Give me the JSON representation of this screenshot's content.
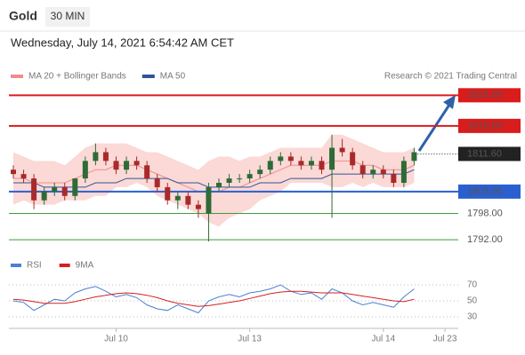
{
  "chart_data": {
    "type": "candlestick",
    "title": "Gold",
    "timeframe": "30 MIN",
    "subtitle": "Wednesday, July 14, 2021 6:54:42 AM CET",
    "source": "Research © 2021 Trading Central",
    "legend": [
      {
        "name": "MA 20 + Bollinger Bands",
        "color": "#f08c8c"
      },
      {
        "name": "MA 50",
        "color": "#2f5597"
      }
    ],
    "up_color": "#2e6b36",
    "down_color": "#a82a2a",
    "band_color": "#fbd9d6",
    "ylim": [
      1790,
      1827.5
    ],
    "open": [
      1808,
      1807,
      1806,
      1801,
      1803,
      1804,
      1802,
      1806,
      1810,
      1812,
      1810,
      1808,
      1810,
      1809,
      1806,
      1804,
      1801,
      1802,
      1800,
      1798,
      1804,
      1805,
      1806,
      1806,
      1807,
      1808,
      1810,
      1811,
      1810,
      1809,
      1810,
      1808,
      1813,
      1812,
      1809,
      1807,
      1808,
      1807,
      1805,
      1810
    ],
    "high": [
      1809,
      1808,
      1807,
      1804,
      1805,
      1805,
      1806,
      1811,
      1814,
      1813,
      1811,
      1811,
      1811,
      1810,
      1807,
      1805,
      1803,
      1803,
      1801,
      1805,
      1806,
      1807,
      1807,
      1808,
      1809,
      1811,
      1812,
      1812,
      1811,
      1811,
      1811,
      1816,
      1815,
      1813,
      1810,
      1809,
      1809,
      1808,
      1811,
      1813
    ],
    "low": [
      1806,
      1805,
      1799,
      1800,
      1802,
      1801,
      1801,
      1805,
      1809,
      1809,
      1807,
      1807,
      1808,
      1805,
      1803,
      1800,
      1799,
      1799,
      1797,
      1791.6,
      1803,
      1804,
      1805,
      1805,
      1806,
      1807,
      1809,
      1809,
      1808,
      1808,
      1807,
      1797,
      1811,
      1808,
      1806,
      1806,
      1806,
      1804,
      1804,
      1809
    ],
    "close": [
      1807,
      1806,
      1801,
      1803,
      1804,
      1802,
      1806,
      1810,
      1812,
      1810,
      1808,
      1810,
      1809,
      1806,
      1804,
      1801,
      1802,
      1800,
      1799,
      1804,
      1805,
      1806,
      1806,
      1807,
      1808,
      1810,
      1811,
      1810,
      1809,
      1810,
      1808,
      1813,
      1812,
      1809,
      1807,
      1808,
      1807,
      1805,
      1810,
      1812
    ],
    "ma20": [
      1806,
      1806,
      1805,
      1805,
      1805,
      1805,
      1806,
      1807,
      1808,
      1808,
      1809,
      1809,
      1809,
      1808,
      1807,
      1806,
      1805,
      1804,
      1803,
      1803,
      1803,
      1804,
      1804,
      1805,
      1806,
      1807,
      1808,
      1809,
      1809,
      1809,
      1809,
      1810,
      1810,
      1810,
      1809,
      1809,
      1808,
      1808,
      1808,
      1809
    ],
    "bb_upper": [
      1812,
      1811,
      1810,
      1810,
      1810,
      1809,
      1811,
      1813,
      1814,
      1814,
      1814,
      1814,
      1813,
      1812,
      1812,
      1811,
      1810,
      1809,
      1808,
      1810,
      1811,
      1811,
      1810,
      1811,
      1811,
      1812,
      1813,
      1813,
      1813,
      1813,
      1813,
      1816,
      1816,
      1815,
      1814,
      1813,
      1812,
      1812,
      1812,
      1813
    ],
    "bb_lower": [
      1800,
      1801,
      1800,
      1800,
      1800,
      1801,
      1801,
      1801,
      1802,
      1802,
      1804,
      1804,
      1805,
      1804,
      1802,
      1801,
      1800,
      1799,
      1798,
      1796,
      1795,
      1797,
      1798,
      1799,
      1801,
      1802,
      1803,
      1805,
      1805,
      1805,
      1805,
      1804,
      1804,
      1805,
      1804,
      1805,
      1804,
      1804,
      1804,
      1805
    ],
    "ma50": [
      1805,
      1805,
      1805,
      1804,
      1804,
      1804,
      1804,
      1804,
      1805,
      1805,
      1805,
      1806,
      1806,
      1806,
      1806,
      1806,
      1805,
      1805,
      1805,
      1804,
      1804,
      1804,
      1804,
      1804,
      1805,
      1805,
      1805,
      1806,
      1806,
      1806,
      1806,
      1807,
      1807,
      1807,
      1807,
      1807,
      1807,
      1807,
      1807,
      1808
    ],
    "levels": [
      {
        "value": 1825,
        "label": "1825.00",
        "color": "#d91c1c",
        "boxed": true
      },
      {
        "value": 1818,
        "label": "1818.00",
        "color": "#d91c1c",
        "boxed": true
      },
      {
        "value": 1803,
        "label": "1803.00",
        "color": "#2a5fd0",
        "boxed": true
      },
      {
        "value": 1798,
        "label": "1798.00",
        "color": "#3f9a3f",
        "boxed": false
      },
      {
        "value": 1792,
        "label": "1792.00",
        "color": "#3f9a3f",
        "boxed": false
      }
    ],
    "current": {
      "value": 1811.6,
      "label": "1811.60",
      "color": "#222222"
    },
    "xticks": [
      {
        "value": 10,
        "label": "Jul 10"
      },
      {
        "value": 23,
        "label": "Jul 13"
      },
      {
        "value": 36,
        "label": "Jul 14"
      },
      {
        "value": 42,
        "label": "Jul 23"
      }
    ],
    "rsi": {
      "ylim": [
        20,
        80
      ],
      "yticks": [
        30,
        50,
        70
      ],
      "series": [
        {
          "name": "RSI",
          "color": "#4a7fd4",
          "values": [
            50,
            48,
            38,
            45,
            52,
            50,
            60,
            65,
            68,
            62,
            55,
            58,
            54,
            45,
            40,
            38,
            45,
            40,
            35,
            50,
            55,
            58,
            55,
            60,
            62,
            65,
            70,
            62,
            58,
            60,
            52,
            65,
            60,
            50,
            45,
            48,
            45,
            42,
            55,
            65
          ]
        },
        {
          "name": "9MA",
          "color": "#d42020",
          "values": [
            52,
            51,
            49,
            47,
            47,
            47,
            49,
            52,
            55,
            57,
            59,
            60,
            59,
            57,
            54,
            50,
            47,
            45,
            43,
            44,
            46,
            48,
            50,
            53,
            56,
            59,
            61,
            62,
            62,
            61,
            60,
            60,
            60,
            58,
            56,
            54,
            52,
            50,
            49,
            52
          ]
        }
      ]
    }
  }
}
